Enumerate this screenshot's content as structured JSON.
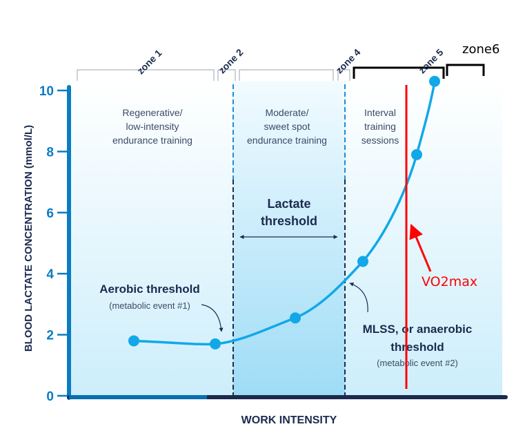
{
  "chart_data": {
    "type": "line",
    "title": "",
    "xlabel": "WORK INTENSITY",
    "ylabel": "BLOOD LACTATE CONCENTRATION (mmol/L)",
    "ylim": [
      0,
      10
    ],
    "yticks": [
      "0",
      "2",
      "4",
      "6",
      "8",
      "10"
    ],
    "grid": false,
    "series": [
      {
        "values": [
          1.8,
          1.7,
          2.55,
          4.4,
          7.9,
          10.3
        ],
        "color": "#12a8e8"
      }
    ],
    "zones": [
      "zone 1",
      "zone 2",
      "",
      "zone 4",
      "zone 5",
      "zone6"
    ],
    "region_labels": [
      [
        "Regenerative/",
        "low-intensity",
        "endurance training"
      ],
      [
        "Moderate/",
        "sweet spot",
        "endurance training"
      ],
      [
        "Interval",
        "training",
        "sessions"
      ]
    ],
    "annotations": {
      "lactate_threshold": [
        "Lactate",
        "threshold"
      ],
      "aerobic_threshold": "Aerobic threshold",
      "aerobic_sub": "(metabolic event #1)",
      "mlss": [
        "MLSS, or anaerobic",
        "threshold"
      ],
      "mlss_sub": "(metabolic event #2)",
      "vo2max": "VO2max"
    },
    "colors": {
      "axis": "#0a7cc4",
      "navy": "#1b2a4e",
      "curve": "#12a8e8",
      "vo2max": "#ff0000"
    }
  }
}
